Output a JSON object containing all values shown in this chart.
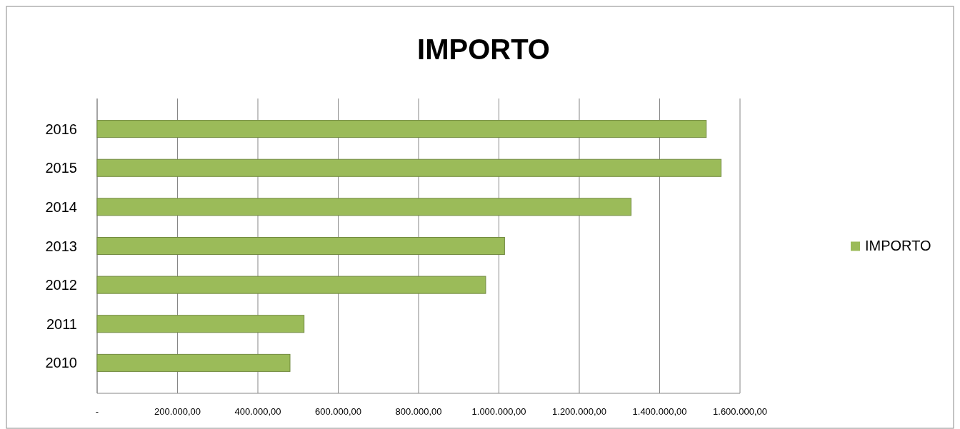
{
  "chart_data": {
    "type": "bar",
    "title": "IMPORTO",
    "orientation": "horizontal",
    "categories": [
      "2016",
      "2015",
      "2014",
      "2013",
      "2012",
      "2011",
      "2010"
    ],
    "series": [
      {
        "name": "IMPORTO",
        "color": "#9bbb59",
        "values": [
          1516000,
          1553000,
          1329000,
          1014000,
          967000,
          515000,
          480000
        ]
      }
    ],
    "xlim": [
      0,
      1600000
    ],
    "xticks": [
      {
        "value": 0,
        "label": "-"
      },
      {
        "value": 200000,
        "label": "200.000,00"
      },
      {
        "value": 400000,
        "label": "400.000,00"
      },
      {
        "value": 600000,
        "label": "600.000,00"
      },
      {
        "value": 800000,
        "label": "800.000,00"
      },
      {
        "value": 1000000,
        "label": "1.000.000,00"
      },
      {
        "value": 1200000,
        "label": "1.200.000,00"
      },
      {
        "value": 1400000,
        "label": "1.400.000,00"
      },
      {
        "value": 1600000,
        "label": "1.600.000,00"
      }
    ],
    "grid": "x",
    "legend": "right"
  }
}
